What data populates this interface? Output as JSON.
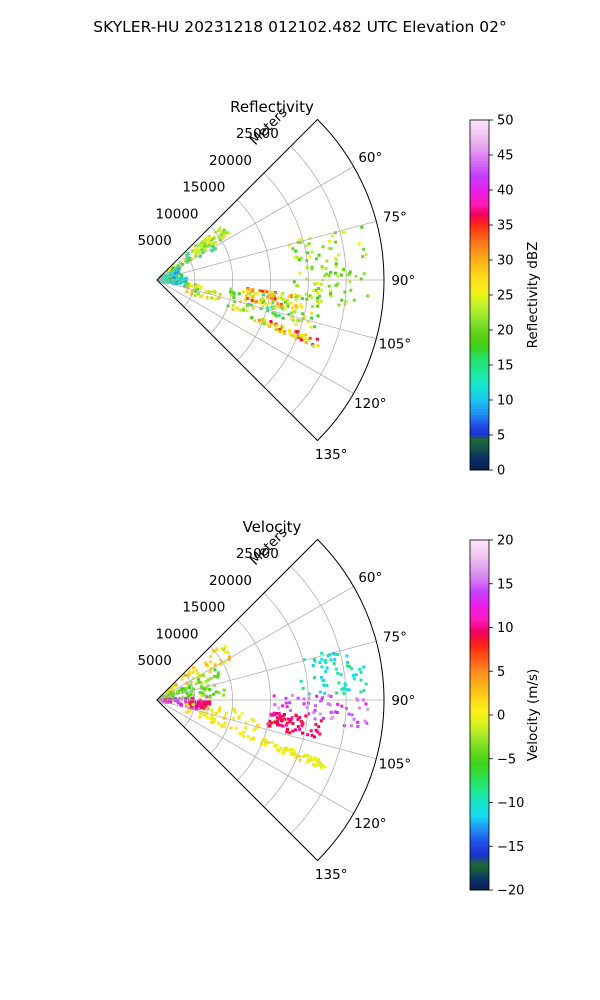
{
  "figure_title": "SKYLER-HU  20231218  012102.482 UTC Elevation 02°",
  "chart_data": [
    {
      "type": "heatmap",
      "subtype": "polar-sector (radar PPI)",
      "title": "Reflectivity",
      "range_axis_label": "Meters",
      "range_ticks": [
        5000,
        10000,
        15000,
        20000,
        25000
      ],
      "range_tick_labels": [
        "5000",
        "10000",
        "15000",
        "20000",
        "25000"
      ],
      "range_max_m": 30000,
      "azimuth_ticks_deg": [
        60,
        75,
        90,
        105,
        120,
        135
      ],
      "azimuth_tick_labels": [
        "60°",
        "75°",
        "90°",
        "105°",
        "120°",
        "135°"
      ],
      "azimuth_limits_deg": [
        45,
        135
      ],
      "grid": true,
      "colorbar": {
        "label": "Reflectivity dBZ",
        "min": 0,
        "max": 50,
        "ticks": [
          0,
          5,
          10,
          15,
          20,
          25,
          30,
          35,
          40,
          45,
          50
        ],
        "tick_labels": [
          "0",
          "5",
          "10",
          "15",
          "20",
          "25",
          "30",
          "35",
          "40",
          "45",
          "50"
        ]
      },
      "echo_regions": [
        {
          "az_deg": [
            48,
            62
          ],
          "range_m": [
            300,
            9000
          ],
          "value_range": [
            12,
            28
          ]
        },
        {
          "az_deg": [
            50,
            58
          ],
          "range_m": [
            6000,
            11500
          ],
          "value_range": [
            20,
            28
          ]
        },
        {
          "az_deg": [
            60,
            86
          ],
          "range_m": [
            800,
            3500
          ],
          "value_range": [
            8,
            18
          ]
        },
        {
          "az_deg": [
            86,
            104
          ],
          "range_m": [
            600,
            4000
          ],
          "value_range": [
            8,
            18
          ]
        },
        {
          "az_deg": [
            97,
            113
          ],
          "range_m": [
            4000,
            14000
          ],
          "value_range": [
            16,
            30
          ]
        },
        {
          "az_deg": [
            74,
            98
          ],
          "range_m": [
            18000,
            28000
          ],
          "value_range": [
            18,
            26
          ]
        },
        {
          "az_deg": [
            96,
            108
          ],
          "range_m": [
            14000,
            22000
          ],
          "value_range": [
            14,
            28
          ]
        },
        {
          "az_deg": [
            110,
            113
          ],
          "range_m": [
            14000,
            24000
          ],
          "value_range": [
            20,
            38
          ]
        },
        {
          "az_deg": [
            95,
            103
          ],
          "range_m": [
            12000,
            19000
          ],
          "value_range": [
            22,
            36
          ]
        }
      ]
    },
    {
      "type": "heatmap",
      "subtype": "polar-sector (radar PPI)",
      "title": "Velocity",
      "range_axis_label": "Meters",
      "range_ticks": [
        5000,
        10000,
        15000,
        20000,
        25000
      ],
      "range_tick_labels": [
        "5000",
        "10000",
        "15000",
        "20000",
        "25000"
      ],
      "range_max_m": 30000,
      "azimuth_ticks_deg": [
        60,
        75,
        90,
        105,
        120,
        135
      ],
      "azimuth_tick_labels": [
        "60°",
        "75°",
        "90°",
        "105°",
        "120°",
        "135°"
      ],
      "azimuth_limits_deg": [
        45,
        135
      ],
      "grid": true,
      "colorbar": {
        "label": "Velocity (m/s)",
        "min": -20,
        "max": 20,
        "ticks": [
          -20,
          -15,
          -10,
          -5,
          0,
          5,
          10,
          15,
          20
        ],
        "tick_labels": [
          "−20",
          "−15",
          "−10",
          "−5",
          "0",
          "5",
          "10",
          "15",
          "20"
        ]
      },
      "echo_regions": [
        {
          "az_deg": [
            48,
            62
          ],
          "range_m": [
            300,
            11500
          ],
          "value_range": [
            -2,
            4
          ]
        },
        {
          "az_deg": [
            62,
            88
          ],
          "range_m": [
            500,
            9000
          ],
          "value_range": [
            -6,
            -2
          ]
        },
        {
          "az_deg": [
            86,
            104
          ],
          "range_m": [
            500,
            7000
          ],
          "value_range": [
            10,
            16
          ]
        },
        {
          "az_deg": [
            92,
            100
          ],
          "range_m": [
            4000,
            7000
          ],
          "value_range": [
            8,
            11
          ]
        },
        {
          "az_deg": [
            74,
            88
          ],
          "range_m": [
            19000,
            28000
          ],
          "value_range": [
            -12,
            -8
          ]
        },
        {
          "az_deg": [
            88,
            98
          ],
          "range_m": [
            15000,
            28000
          ],
          "value_range": [
            12,
            17
          ]
        },
        {
          "az_deg": [
            96,
            104
          ],
          "range_m": [
            15000,
            22000
          ],
          "value_range": [
            8,
            11
          ]
        },
        {
          "az_deg": [
            97,
            113
          ],
          "range_m": [
            4000,
            14000
          ],
          "value_range": [
            -1,
            2
          ]
        },
        {
          "az_deg": [
            110,
            113
          ],
          "range_m": [
            14000,
            24000
          ],
          "value_range": [
            -1,
            2
          ]
        }
      ]
    }
  ]
}
